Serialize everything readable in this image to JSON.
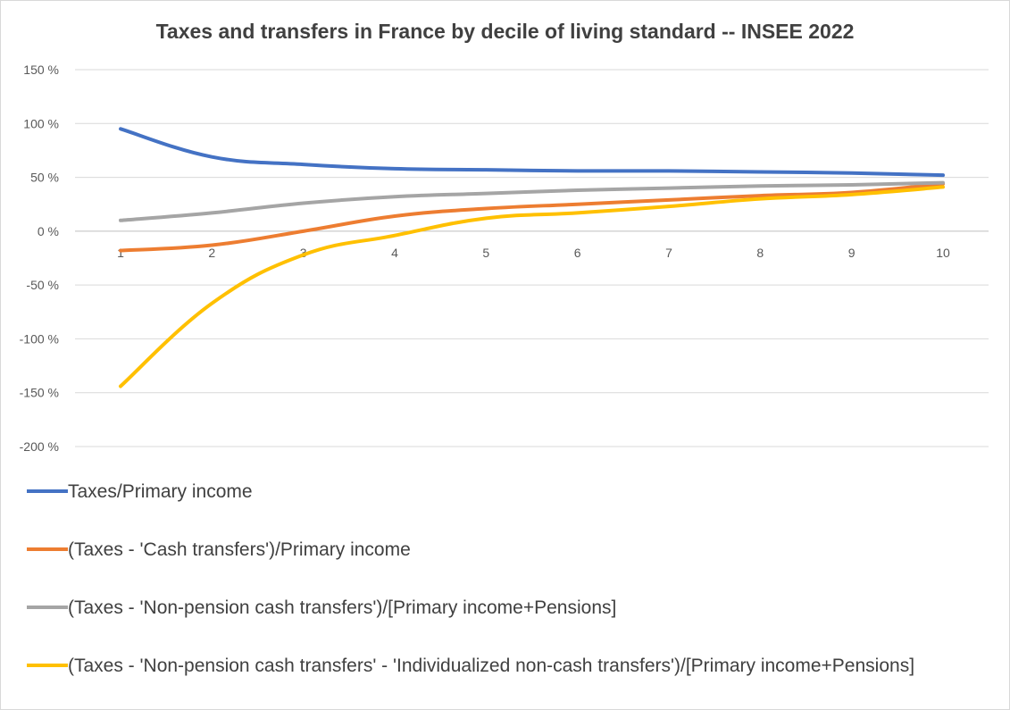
{
  "chart_data": {
    "type": "line",
    "title": "Taxes and transfers in France by decile of living standard -- INSEE 2022",
    "xlabel": "",
    "ylabel": "",
    "categories": [
      "1",
      "2",
      "3",
      "4",
      "5",
      "6",
      "7",
      "8",
      "9",
      "10"
    ],
    "ylim": [
      -200,
      150
    ],
    "ytick_values": [
      150,
      100,
      50,
      0,
      -50,
      -100,
      -150,
      -200
    ],
    "ytick_labels": [
      "150 %",
      "100 %",
      "50 %",
      "0 %",
      "-50 %",
      "-100 %",
      "-150 %",
      "-200 %"
    ],
    "grid": true,
    "legend_position": "bottom",
    "series": [
      {
        "name": "Taxes/Primary income",
        "color": "#4472c4",
        "values": [
          95,
          69,
          62,
          58,
          57,
          56,
          56,
          55,
          54,
          52
        ]
      },
      {
        "name": "(Taxes - 'Cash transfers')/Primary income",
        "color": "#ed7d31",
        "values": [
          -18,
          -13,
          0,
          14,
          21,
          25,
          29,
          33,
          36,
          44
        ]
      },
      {
        "name": "(Taxes - 'Non-pension cash transfers')/[Primary income+Pensions]",
        "color": "#a5a5a5",
        "values": [
          10,
          17,
          26,
          32,
          35,
          38,
          40,
          42,
          43,
          45
        ]
      },
      {
        "name": "(Taxes - 'Non-pension cash transfers' - 'Individualized non-cash transfers')/[Primary income+Pensions]",
        "color": "#ffc000",
        "values": [
          -144,
          -67,
          -22,
          -4,
          12,
          17,
          23,
          30,
          34,
          41
        ]
      }
    ]
  }
}
